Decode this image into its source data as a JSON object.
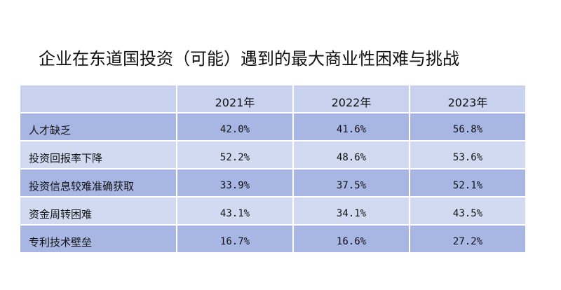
{
  "chart_data": {
    "type": "table",
    "title": "企业在东道国投资（可能）遇到的最大商业性困难与挑战",
    "columns": [
      "",
      "2021年",
      "2022年",
      "2023年"
    ],
    "rows": [
      {
        "label": "人才缺乏",
        "values": [
          "42.0%",
          "41.6%",
          "56.8%"
        ]
      },
      {
        "label": "投资回报率下降",
        "values": [
          "52.2%",
          "48.6%",
          "53.6%"
        ]
      },
      {
        "label": "投资信息较难准确获取",
        "values": [
          "33.9%",
          "37.5%",
          "52.1%"
        ]
      },
      {
        "label": "资金周转困难",
        "values": [
          "43.1%",
          "34.1%",
          "43.5%"
        ]
      },
      {
        "label": "专利技术壁垒",
        "values": [
          "16.7%",
          "16.6%",
          "27.2%"
        ]
      }
    ]
  }
}
